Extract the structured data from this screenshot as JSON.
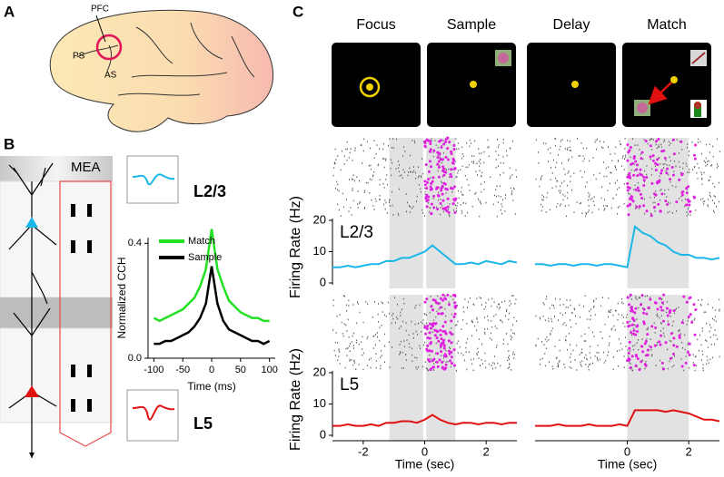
{
  "panel_labels": [
    "A",
    "B",
    "C"
  ],
  "brain_labels": {
    "pfc": "PFC",
    "ps": "PS",
    "as": "AS"
  },
  "mea_label": "MEA",
  "waveform_labels": [
    "L2/3",
    "L5"
  ],
  "task_epochs": [
    "Focus",
    "Sample",
    "Delay",
    "Match"
  ],
  "chart_data": [
    {
      "type": "line",
      "xlabel": "Time (ms)",
      "ylabel": "Normalized CCH",
      "x": [
        -100,
        -90,
        -80,
        -70,
        -60,
        -50,
        -40,
        -30,
        -20,
        -10,
        0,
        10,
        20,
        30,
        40,
        50,
        60,
        70,
        80,
        90,
        100
      ],
      "series": [
        {
          "name": "Match",
          "color": "#22e022",
          "values": [
            0.14,
            0.13,
            0.14,
            0.15,
            0.16,
            0.17,
            0.19,
            0.21,
            0.25,
            0.31,
            0.45,
            0.31,
            0.25,
            0.2,
            0.18,
            0.16,
            0.15,
            0.14,
            0.14,
            0.13,
            0.13
          ]
        },
        {
          "name": "Sample",
          "color": "#000000",
          "values": [
            0.05,
            0.05,
            0.06,
            0.06,
            0.07,
            0.08,
            0.09,
            0.11,
            0.14,
            0.19,
            0.32,
            0.19,
            0.13,
            0.1,
            0.09,
            0.08,
            0.07,
            0.06,
            0.06,
            0.05,
            0.06
          ]
        }
      ],
      "xlim": [
        -110,
        110
      ],
      "ylim": [
        0,
        0.42
      ],
      "xticks": [
        -100,
        -50,
        0,
        50,
        100
      ],
      "yticks": [
        {
          "value": 0,
          "label": "0.0"
        },
        0.4
      ]
    },
    {
      "type": "line",
      "layer_label": "L2/3",
      "ylabel": "Firing Rate (Hz)",
      "x": [
        -3,
        -2.75,
        -2.5,
        -2.25,
        -2,
        -1.75,
        -1.5,
        -1.25,
        -1,
        -0.75,
        -0.5,
        -0.25,
        0,
        0.25,
        0.5,
        0.75,
        1,
        1.25,
        1.5,
        1.75,
        2,
        2.25,
        2.5,
        2.75,
        3
      ],
      "series": [
        {
          "color": "#1ab8e8",
          "values": [
            5,
            5,
            5.5,
            5,
            5.5,
            6,
            6,
            7,
            7,
            8,
            8,
            9,
            10,
            12,
            10,
            8,
            6,
            6,
            6.5,
            6,
            7,
            6.5,
            6,
            7,
            6.5
          ]
        }
      ],
      "xlim": [
        -3,
        3
      ],
      "ylim": [
        0,
        20
      ],
      "yticks": [
        0,
        10,
        20
      ],
      "shaded_spans": [
        [
          -1.15,
          -0.05
        ],
        [
          0.05,
          1
        ]
      ]
    },
    {
      "type": "line",
      "x": [
        -3,
        -2.75,
        -2.5,
        -2.25,
        -2,
        -1.75,
        -1.5,
        -1.25,
        -1,
        -0.75,
        -0.5,
        -0.25,
        0,
        0.25,
        0.5,
        0.75,
        1,
        1.25,
        1.5,
        1.75,
        2,
        2.25,
        2.5,
        2.75,
        3
      ],
      "series": [
        {
          "color": "#1ab8e8",
          "values": [
            6,
            6,
            5.5,
            6,
            6,
            5.5,
            6,
            6,
            5.5,
            6,
            6,
            5.5,
            5,
            18,
            16,
            15,
            13,
            12,
            10,
            9,
            9,
            8,
            8,
            7.5,
            8
          ]
        }
      ],
      "xlim": [
        -3,
        3
      ],
      "ylim": [
        0,
        20
      ],
      "shaded_spans": [
        [
          0,
          2
        ]
      ]
    },
    {
      "type": "line",
      "layer_label": "L5",
      "ylabel": "Firing Rate (Hz)",
      "xlabel": "Time (sec)",
      "x": [
        -3,
        -2.75,
        -2.5,
        -2.25,
        -2,
        -1.75,
        -1.5,
        -1.25,
        -1,
        -0.75,
        -0.5,
        -0.25,
        0,
        0.25,
        0.5,
        0.75,
        1,
        1.25,
        1.5,
        1.75,
        2,
        2.25,
        2.5,
        2.75,
        3
      ],
      "series": [
        {
          "color": "#e01010",
          "values": [
            3,
            3,
            3.5,
            3,
            3,
            3.5,
            3,
            4,
            4,
            4.5,
            4.5,
            4,
            5,
            6.5,
            5,
            4,
            3.5,
            4,
            4,
            3.5,
            4,
            4,
            3.5,
            4,
            4
          ]
        }
      ],
      "xlim": [
        -3,
        3
      ],
      "ylim": [
        0,
        20
      ],
      "yticks": [
        0,
        10,
        20
      ],
      "xticks": [
        -2,
        0,
        2
      ],
      "shaded_spans": [
        [
          -1.15,
          -0.05
        ],
        [
          0.05,
          1
        ]
      ]
    },
    {
      "type": "line",
      "xlabel": "Time (sec)",
      "x": [
        -3,
        -2.75,
        -2.5,
        -2.25,
        -2,
        -1.75,
        -1.5,
        -1.25,
        -1,
        -0.75,
        -0.5,
        -0.25,
        0,
        0.25,
        0.5,
        0.75,
        1,
        1.25,
        1.5,
        1.75,
        2,
        2.25,
        2.5,
        2.75,
        3
      ],
      "series": [
        {
          "color": "#e01010",
          "values": [
            3,
            3,
            3,
            3.5,
            3,
            3,
            3,
            3.5,
            3,
            3,
            3,
            3.5,
            3,
            8,
            8,
            8,
            8,
            7.5,
            8,
            7.5,
            7,
            6,
            5,
            5,
            4.5
          ]
        }
      ],
      "xlim": [
        -3,
        3
      ],
      "ylim": [
        0,
        20
      ],
      "xticks": [
        0,
        2
      ],
      "shaded_spans": [
        [
          0,
          2
        ]
      ]
    }
  ]
}
